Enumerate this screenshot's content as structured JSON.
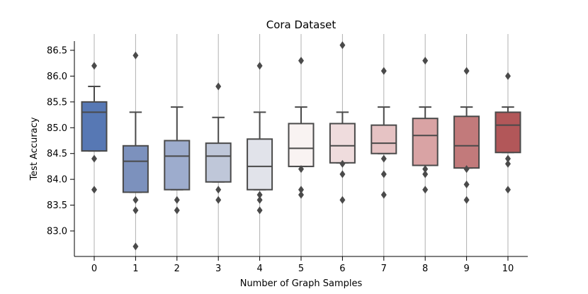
{
  "chart_data": {
    "type": "boxplot",
    "title": "Cora Dataset",
    "xlabel": "Number of Graph Samples",
    "ylabel": "Test Accuracy",
    "ylim": [
      82.5,
      86.9
    ],
    "yticks": [
      "83.0",
      "83.5",
      "84.0",
      "84.5",
      "85.0",
      "85.5",
      "86.0",
      "86.5"
    ],
    "grid": "vertical",
    "categories": [
      "0",
      "1",
      "2",
      "3",
      "4",
      "5",
      "6",
      "7",
      "8",
      "9",
      "10"
    ],
    "colors": [
      "#5778b4",
      "#7c91bd",
      "#9daccd",
      "#bfc7d9",
      "#e1e3ea",
      "#f9f3f2",
      "#efdcdd",
      "#e6c3c4",
      "#d9a3a4",
      "#c27a7b",
      "#b25759"
    ],
    "boxes": [
      {
        "whisker_low": 84.55,
        "q1": 84.55,
        "median": 85.3,
        "q3": 85.5,
        "whisker_high": 85.8,
        "outliers": [
          86.2,
          84.4,
          83.8
        ]
      },
      {
        "whisker_low": 83.75,
        "q1": 83.75,
        "median": 84.35,
        "q3": 84.65,
        "whisker_high": 85.3,
        "outliers": [
          86.4,
          83.6,
          83.4,
          82.7
        ]
      },
      {
        "whisker_low": 83.8,
        "q1": 83.8,
        "median": 84.45,
        "q3": 84.75,
        "whisker_high": 85.4,
        "outliers": [
          83.6,
          83.4
        ]
      },
      {
        "whisker_low": 83.95,
        "q1": 83.95,
        "median": 84.45,
        "q3": 84.7,
        "whisker_high": 85.2,
        "outliers": [
          85.8,
          83.8,
          83.6
        ]
      },
      {
        "whisker_low": 83.8,
        "q1": 83.8,
        "median": 84.25,
        "q3": 84.78,
        "whisker_high": 85.3,
        "outliers": [
          86.2,
          83.7,
          83.6,
          83.4
        ]
      },
      {
        "whisker_low": 84.25,
        "q1": 84.25,
        "median": 84.6,
        "q3": 85.08,
        "whisker_high": 85.4,
        "outliers": [
          86.3,
          84.2,
          83.8,
          83.7
        ]
      },
      {
        "whisker_low": 84.32,
        "q1": 84.32,
        "median": 84.65,
        "q3": 85.08,
        "whisker_high": 85.3,
        "outliers": [
          86.6,
          84.3,
          84.1,
          83.6
        ]
      },
      {
        "whisker_low": 84.5,
        "q1": 84.5,
        "median": 84.7,
        "q3": 85.05,
        "whisker_high": 85.4,
        "outliers": [
          86.1,
          84.4,
          84.1,
          83.7
        ]
      },
      {
        "whisker_low": 84.27,
        "q1": 84.27,
        "median": 84.85,
        "q3": 85.18,
        "whisker_high": 85.4,
        "outliers": [
          86.3,
          84.2,
          84.1,
          83.8
        ]
      },
      {
        "whisker_low": 84.22,
        "q1": 84.22,
        "median": 84.65,
        "q3": 85.22,
        "whisker_high": 85.4,
        "outliers": [
          86.1,
          84.2,
          83.9,
          83.6
        ]
      },
      {
        "whisker_low": 84.52,
        "q1": 84.52,
        "median": 85.05,
        "q3": 85.3,
        "whisker_high": 85.4,
        "outliers": [
          86.0,
          84.4,
          84.3,
          83.8
        ]
      }
    ]
  }
}
